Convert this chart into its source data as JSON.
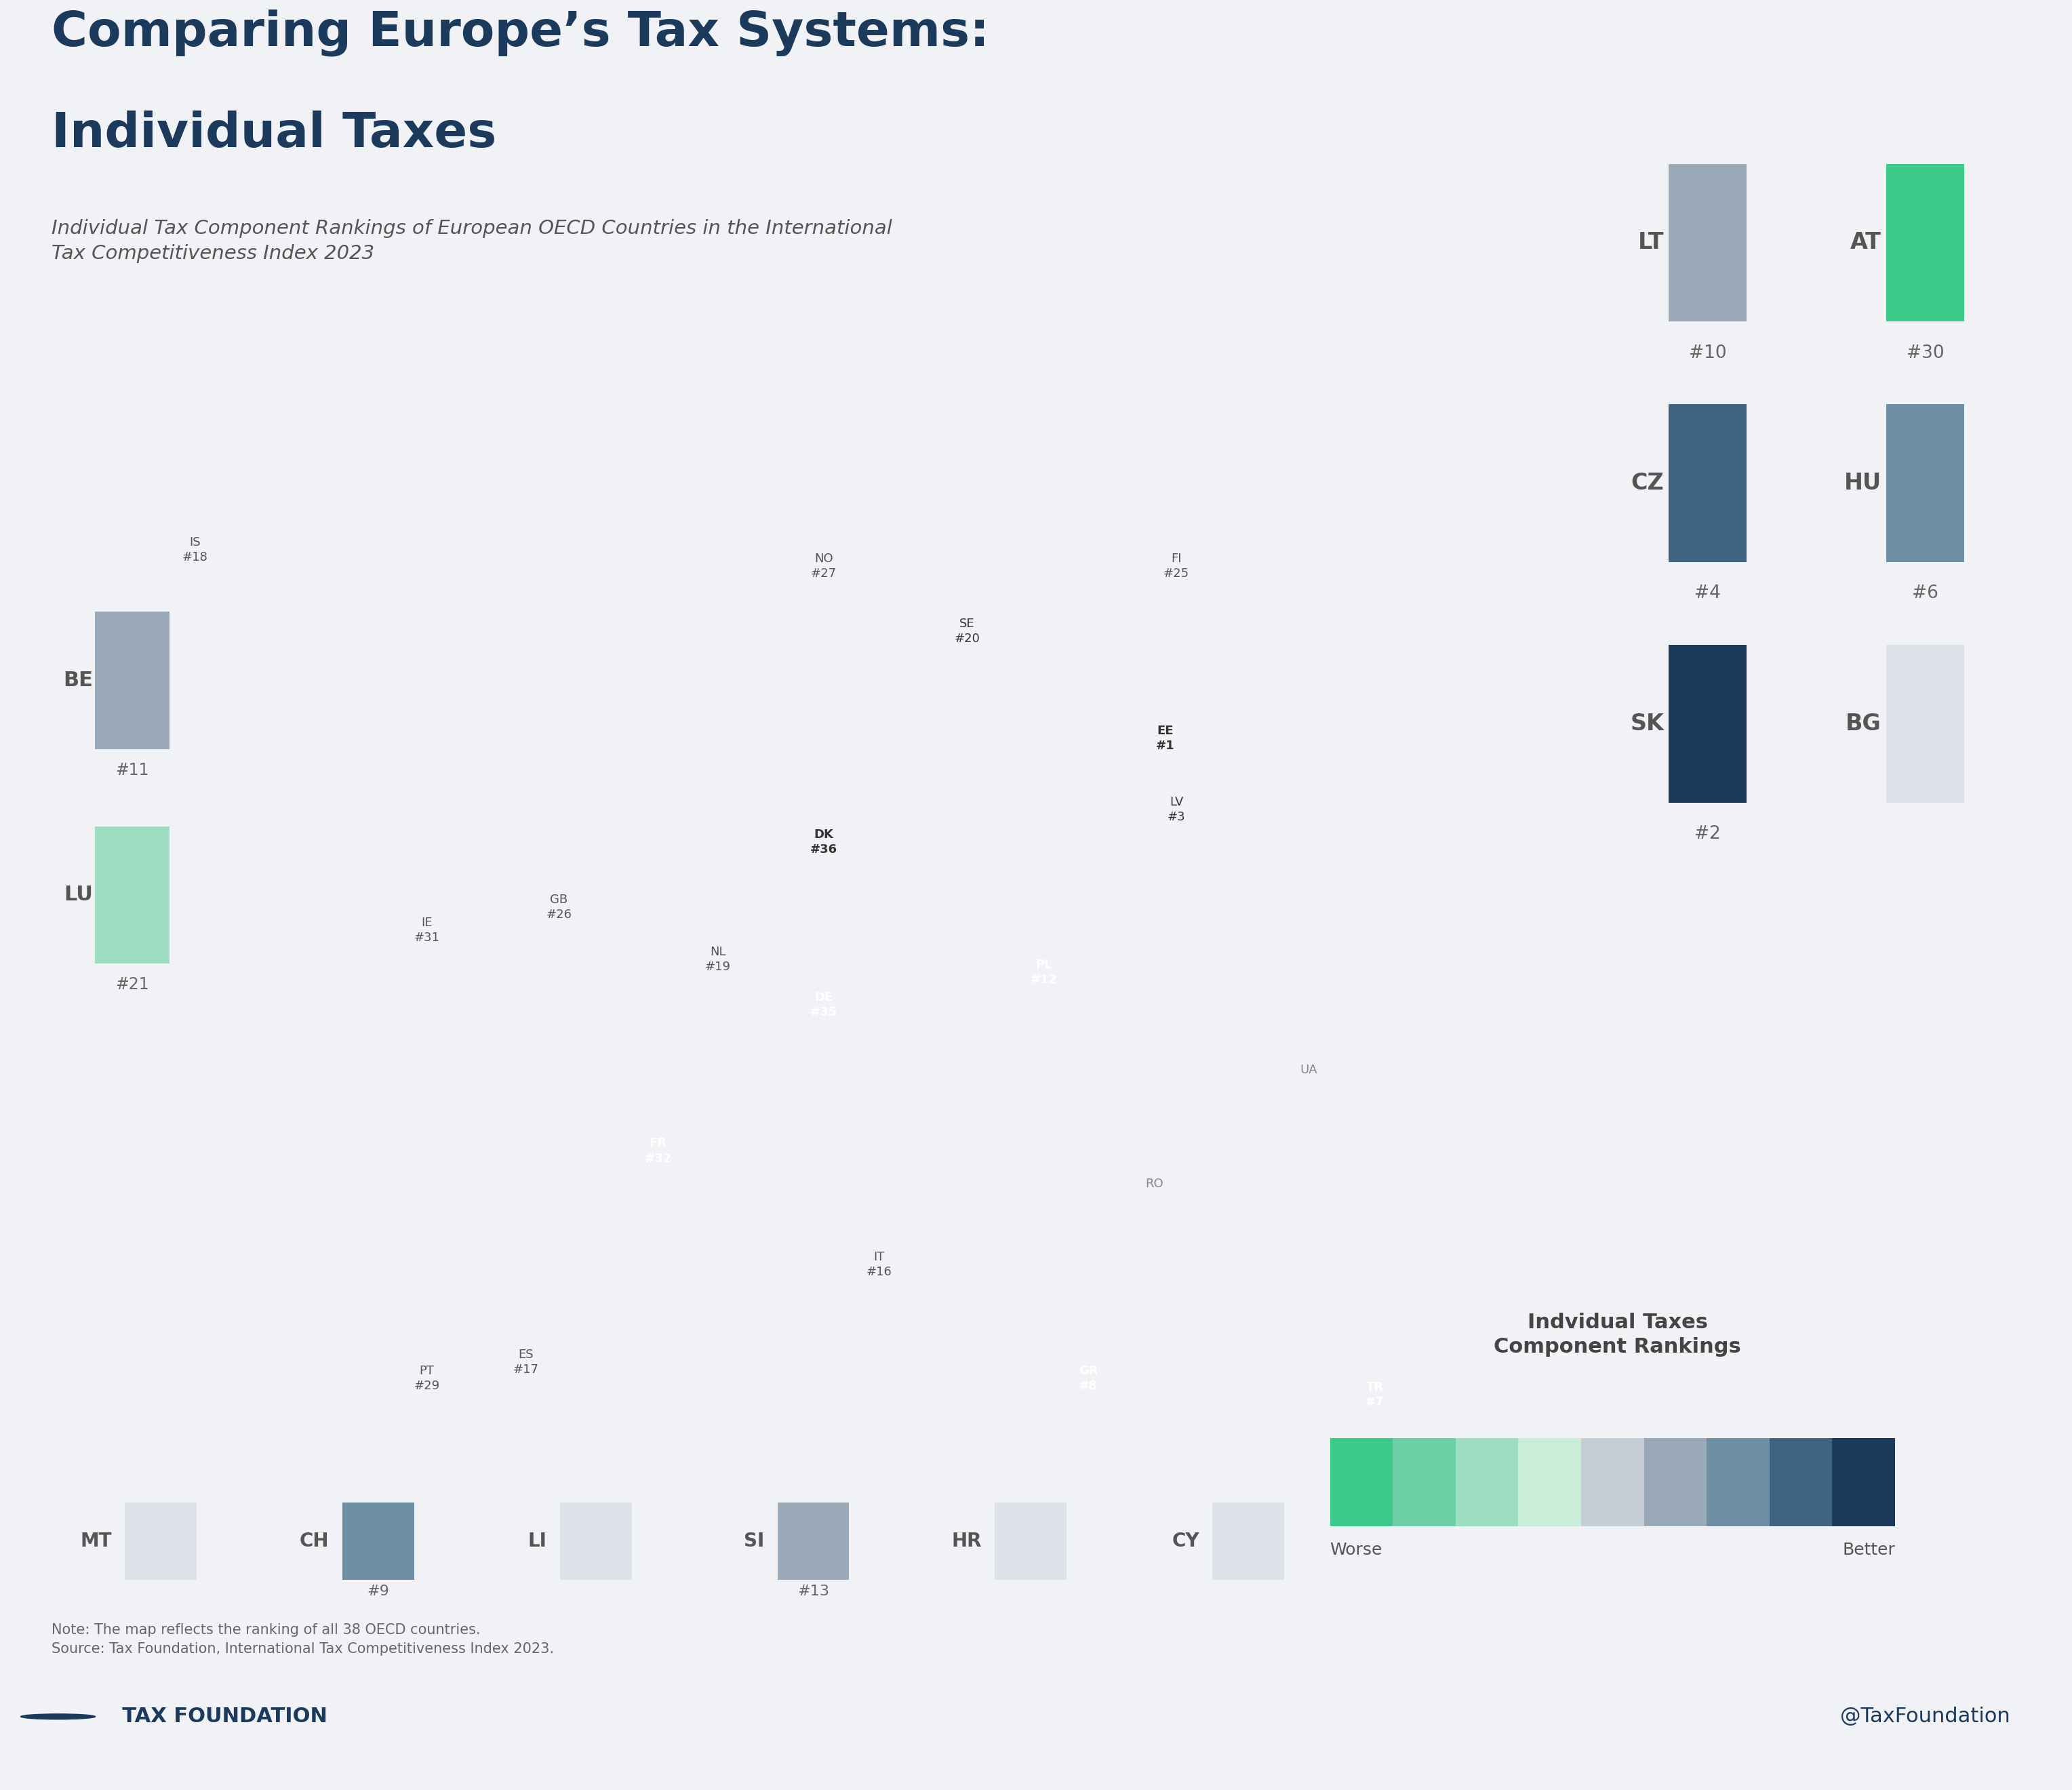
{
  "title_line1": "Comparing Europe’s Tax Systems:",
  "title_line2": "Individual Taxes",
  "subtitle": "Individual Tax Component Rankings of European OECD Countries in the International\nTax Competitiveness Index 2023",
  "background_color": "#f0f2f5",
  "title_color": "#1b3a5c",
  "subtitle_color": "#555555",
  "note_text": "Note: The map reflects the ranking of all 38 OECD countries.\nSource: Tax Foundation, International Tax Competitiveness Index 2023.",
  "footer_left": "  TAX FOUNDATION",
  "footer_right": "@TaxFoundation",
  "footer_color": "#1b3a5c",
  "legend_title": "Indvidual Taxes\nComponent Rankings",
  "legend_worse": "Worse",
  "legend_better": "Better",
  "color_scale": [
    "#3dc98a",
    "#6dcfa6",
    "#9ddec2",
    "#c8edd9",
    "#c5cdd6",
    "#9aaab8",
    "#6f8fa5",
    "#3e6482",
    "#1b3a5c"
  ],
  "iso_colors": {
    "EST": "#1b3a5c",
    "SVK": "#1b3a5c",
    "LVA": "#1b3a5c",
    "CZE": "#3e6482",
    "HUN": "#6f8fa5",
    "TUR": "#6f8fa5",
    "GRC": "#3e6482",
    "CHE": "#6f8fa5",
    "LTU": "#9aaab8",
    "BEL": "#9aaab8",
    "POL": "#9aaab8",
    "SVN": "#9aaab8",
    "ITA": "#c8edd9",
    "ESP": "#c8edd9",
    "ISL": "#9ddec2",
    "NLD": "#6dcfa6",
    "SWE": "#6dcfa6",
    "LUX": "#9ddec2",
    "FIN": "#9ddec2",
    "GBR": "#c8edd9",
    "NOR": "#9ddec2",
    "PRT": "#9ddec2",
    "AUT": "#3dc98a",
    "IRL": "#c8edd9",
    "FRA": "#3dc98a",
    "DEU": "#3dc98a",
    "DNK": "#6dcfa6"
  },
  "nonoecd_color": "#dde2e8",
  "nonoecd_hatch_color": "#c8cfd8",
  "border_color": "#ffffff",
  "map_bounds": {
    "minx": -25,
    "maxx": 45,
    "miny": 34,
    "maxy": 72
  },
  "map_labels": {
    "IS": {
      "lon": -18.5,
      "lat": 65.0,
      "text": "IS\n#18",
      "color": "#555555",
      "bold": false,
      "line": null
    },
    "NO": {
      "lon": 10.0,
      "lat": 64.5,
      "text": "NO\n#27",
      "color": "#555555",
      "bold": false,
      "line": null
    },
    "FI": {
      "lon": 26.0,
      "lat": 64.5,
      "text": "FI\n#25",
      "color": "#555555",
      "bold": false,
      "line": null
    },
    "SE": {
      "lon": 16.5,
      "lat": 62.5,
      "text": "SE\n#20",
      "color": "#333333",
      "bold": false,
      "line": null
    },
    "EE": {
      "lon": 25.5,
      "lat": 59.2,
      "text": "EE\n#1",
      "color": "#333333",
      "bold": true,
      "line": null
    },
    "LV": {
      "lon": 26.0,
      "lat": 57.0,
      "text": "LV\n#3",
      "color": "#333333",
      "bold": false,
      "line": null
    },
    "GB": {
      "lon": -2.0,
      "lat": 54.0,
      "text": "GB\n#26",
      "color": "#555555",
      "bold": false,
      "line": null
    },
    "IE": {
      "lon": -8.0,
      "lat": 53.3,
      "text": "IE\n#31",
      "color": "#555555",
      "bold": false,
      "line": null
    },
    "DK": {
      "lon": 10.0,
      "lat": 56.0,
      "text": "DK\n#36",
      "color": "#333333",
      "bold": true,
      "line": null
    },
    "NL": {
      "lon": 5.2,
      "lat": 52.4,
      "text": "NL\n#19",
      "color": "#555555",
      "bold": false,
      "line": null
    },
    "PL": {
      "lon": 20.0,
      "lat": 52.0,
      "text": "PL\n#12",
      "color": "#ffffff",
      "bold": true,
      "line": null
    },
    "DE": {
      "lon": 10.0,
      "lat": 51.0,
      "text": "DE\n#35",
      "color": "#ffffff",
      "bold": true,
      "line": null
    },
    "FR": {
      "lon": 2.5,
      "lat": 46.5,
      "text": "FR\n#32",
      "color": "#ffffff",
      "bold": true,
      "line": null
    },
    "ES": {
      "lon": -3.5,
      "lat": 40.0,
      "text": "ES\n#17",
      "color": "#555555",
      "bold": false,
      "line": null
    },
    "PT": {
      "lon": -8.0,
      "lat": 39.5,
      "text": "PT\n#29",
      "color": "#555555",
      "bold": false,
      "line": null
    },
    "IT": {
      "lon": 12.5,
      "lat": 43.0,
      "text": "IT\n#16",
      "color": "#555555",
      "bold": false,
      "line": null
    },
    "GR": {
      "lon": 22.0,
      "lat": 39.5,
      "text": "GR\n#8",
      "color": "#ffffff",
      "bold": true,
      "line": null
    },
    "TR": {
      "lon": 35.0,
      "lat": 39.0,
      "text": "TR\n#7",
      "color": "#ffffff",
      "bold": true,
      "line": null
    },
    "RO": {
      "lon": 25.0,
      "lat": 45.5,
      "text": "RO",
      "color": "#888888",
      "bold": false,
      "line": null
    },
    "UA": {
      "lon": 32.0,
      "lat": 49.0,
      "text": "UA",
      "color": "#888888",
      "bold": false,
      "line": null
    }
  },
  "sidebar_right": [
    [
      {
        "code": "LT",
        "rank": 10,
        "color": "#9aaab8",
        "hatched": false
      },
      {
        "code": "AT",
        "rank": 30,
        "color": "#3dc98a",
        "hatched": false
      }
    ],
    [
      {
        "code": "CZ",
        "rank": 4,
        "color": "#3e6482",
        "hatched": false
      },
      {
        "code": "HU",
        "rank": 6,
        "color": "#6f8fa5",
        "hatched": false
      }
    ],
    [
      {
        "code": "SK",
        "rank": 2,
        "color": "#1b3a5c",
        "hatched": false
      },
      {
        "code": "BG",
        "rank": null,
        "color": "#dde2e8",
        "hatched": true
      }
    ]
  ],
  "sidebar_left": [
    {
      "code": "BE",
      "rank": 11,
      "color": "#9aaab8",
      "hatched": false
    },
    {
      "code": "LU",
      "rank": 21,
      "color": "#9ddec2",
      "hatched": false
    }
  ],
  "sidebar_bottom": [
    {
      "code": "MT",
      "rank": null,
      "color": "#dde2e8",
      "hatched": true
    },
    {
      "code": "CH",
      "rank": 9,
      "color": "#6f8fa5",
      "hatched": false
    },
    {
      "code": "LI",
      "rank": null,
      "color": "#dde2e8",
      "hatched": true
    },
    {
      "code": "SI",
      "rank": 13,
      "color": "#9aaab8",
      "hatched": false
    },
    {
      "code": "HR",
      "rank": null,
      "color": "#dde2e8",
      "hatched": true
    },
    {
      "code": "CY",
      "rank": null,
      "color": "#dde2e8",
      "hatched": true
    }
  ]
}
